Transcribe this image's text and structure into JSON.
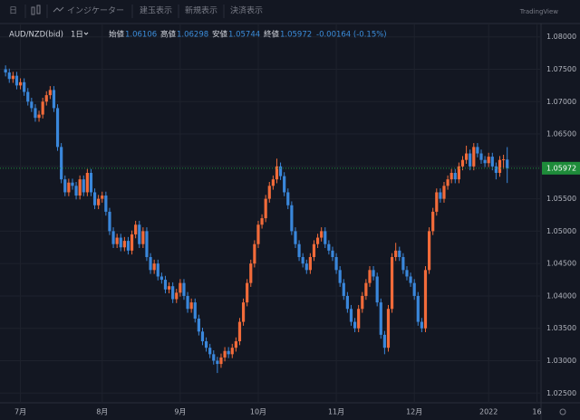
{
  "toolbar": {
    "interval": "日",
    "indicators": "インジケーター",
    "buttons": [
      "建玉表示",
      "新規表示",
      "決済表示"
    ],
    "brand": "TradingView"
  },
  "chart_data": {
    "type": "candlestick",
    "symbol": "AUD/NZD(bid)",
    "interval": "1日",
    "header_labels": [
      "始値",
      "高値",
      "安値",
      "終値"
    ],
    "change": "-0.00164 (-0.15%)",
    "up_color": "#f26b3a",
    "down_color": "#3a87db",
    "last_price_color": "#1e8c3a",
    "grid": true,
    "ylim": [
      1.0235,
      1.0815
    ],
    "xlim": [
      -1.5,
      144.1
    ],
    "yticks": [
      {
        "value": 1.08,
        "label": "1.08000"
      },
      {
        "value": 1.075,
        "label": "1.07500"
      },
      {
        "value": 1.07,
        "label": "1.07000"
      },
      {
        "value": 1.065,
        "label": "1.06500"
      },
      {
        "value": 1.06,
        "label": "1.06000"
      },
      {
        "value": 1.055,
        "label": "1.05500"
      },
      {
        "value": 1.05,
        "label": "1.05000"
      },
      {
        "value": 1.045,
        "label": "1.04500"
      },
      {
        "value": 1.04,
        "label": "1.04000"
      },
      {
        "value": 1.035,
        "label": "1.03500"
      },
      {
        "value": 1.03,
        "label": "1.03000"
      },
      {
        "value": 1.025,
        "label": "1.02500"
      }
    ],
    "xticks": [
      {
        "value": 4,
        "label": "7月"
      },
      {
        "value": 26,
        "label": "8月"
      },
      {
        "value": 47,
        "label": "9月"
      },
      {
        "value": 68,
        "label": "10月"
      },
      {
        "value": 89,
        "label": "11月"
      },
      {
        "value": 110,
        "label": "12月"
      },
      {
        "value": 130,
        "label": "2022"
      },
      {
        "value": 143,
        "label": "16"
      }
    ],
    "candles": [
      [
        1.075,
        1.0756,
        1.0739,
        1.0745
      ],
      [
        1.0745,
        1.0751,
        1.0729,
        1.0735
      ],
      [
        1.0735,
        1.0746,
        1.0729,
        1.074
      ],
      [
        1.074,
        1.0746,
        1.0719,
        1.0725
      ],
      [
        1.0725,
        1.0736,
        1.0719,
        1.073
      ],
      [
        1.073,
        1.0736,
        1.0709,
        1.0715
      ],
      [
        1.0715,
        1.0721,
        1.0694,
        1.07
      ],
      [
        1.07,
        1.0706,
        1.0684,
        1.069
      ],
      [
        1.069,
        1.0696,
        1.0669,
        1.0675
      ],
      [
        1.0675,
        1.0686,
        1.0669,
        1.068
      ],
      [
        1.068,
        1.0706,
        1.0674,
        1.07
      ],
      [
        1.07,
        1.0716,
        1.0694,
        1.071
      ],
      [
        1.071,
        1.0724,
        1.0704,
        1.0718
      ],
      [
        1.0718,
        1.0724,
        1.0684,
        1.069
      ],
      [
        1.069,
        1.0696,
        1.0624,
        1.063
      ],
      [
        1.063,
        1.0636,
        1.0574,
        1.058
      ],
      [
        1.058,
        1.0586,
        1.0554,
        1.056
      ],
      [
        1.056,
        1.0581,
        1.0554,
        1.0575
      ],
      [
        1.0575,
        1.0581,
        1.0564,
        1.057
      ],
      [
        1.057,
        1.0576,
        1.0549,
        1.0555
      ],
      [
        1.0555,
        1.0586,
        1.0549,
        1.058
      ],
      [
        1.058,
        1.0586,
        1.0554,
        1.056
      ],
      [
        1.056,
        1.0596,
        1.0554,
        1.059
      ],
      [
        1.059,
        1.0596,
        1.0554,
        1.056
      ],
      [
        1.056,
        1.0566,
        1.0534,
        1.054
      ],
      [
        1.054,
        1.0556,
        1.0534,
        1.055
      ],
      [
        1.055,
        1.0561,
        1.0544,
        1.0555
      ],
      [
        1.0555,
        1.0561,
        1.0524,
        1.053
      ],
      [
        1.053,
        1.0536,
        1.0494,
        1.05
      ],
      [
        1.05,
        1.0506,
        1.0474,
        1.048
      ],
      [
        1.048,
        1.0496,
        1.0474,
        1.049
      ],
      [
        1.049,
        1.0496,
        1.0469,
        1.0475
      ],
      [
        1.0475,
        1.0491,
        1.0469,
        1.0485
      ],
      [
        1.0485,
        1.0491,
        1.0464,
        1.047
      ],
      [
        1.047,
        1.0501,
        1.0464,
        1.0495
      ],
      [
        1.0495,
        1.0516,
        1.0489,
        1.051
      ],
      [
        1.051,
        1.0516,
        1.0474,
        1.048
      ],
      [
        1.048,
        1.0506,
        1.0474,
        1.05
      ],
      [
        1.05,
        1.0506,
        1.0454,
        1.046
      ],
      [
        1.046,
        1.0466,
        1.0434,
        1.044
      ],
      [
        1.044,
        1.0456,
        1.0434,
        1.045
      ],
      [
        1.045,
        1.0456,
        1.0424,
        1.043
      ],
      [
        1.043,
        1.0436,
        1.0419,
        1.0425
      ],
      [
        1.0425,
        1.0431,
        1.0404,
        1.041
      ],
      [
        1.041,
        1.0421,
        1.0404,
        1.0415
      ],
      [
        1.0415,
        1.0421,
        1.0389,
        1.0395
      ],
      [
        1.0395,
        1.0411,
        1.0389,
        1.0405
      ],
      [
        1.0405,
        1.0426,
        1.0399,
        1.042
      ],
      [
        1.042,
        1.0426,
        1.0394,
        1.04
      ],
      [
        1.04,
        1.0406,
        1.0374,
        1.038
      ],
      [
        1.038,
        1.0396,
        1.0374,
        1.039
      ],
      [
        1.039,
        1.0396,
        1.0359,
        1.0365
      ],
      [
        1.0365,
        1.0371,
        1.0339,
        1.0345
      ],
      [
        1.0345,
        1.0351,
        1.0324,
        1.033
      ],
      [
        1.033,
        1.0336,
        1.0314,
        1.032
      ],
      [
        1.032,
        1.0326,
        1.0304,
        1.031
      ],
      [
        1.031,
        1.0316,
        1.0294,
        1.03
      ],
      [
        1.03,
        1.0306,
        1.0281,
        1.0295
      ],
      [
        1.0295,
        1.0311,
        1.0289,
        1.0305
      ],
      [
        1.0305,
        1.0321,
        1.0299,
        1.0315
      ],
      [
        1.0315,
        1.0321,
        1.0304,
        1.031
      ],
      [
        1.031,
        1.0326,
        1.0304,
        1.032
      ],
      [
        1.032,
        1.0336,
        1.0314,
        1.033
      ],
      [
        1.033,
        1.0366,
        1.0324,
        1.036
      ],
      [
        1.036,
        1.0396,
        1.0354,
        1.039
      ],
      [
        1.039,
        1.0426,
        1.0384,
        1.042
      ],
      [
        1.042,
        1.0456,
        1.0414,
        1.045
      ],
      [
        1.045,
        1.0486,
        1.0444,
        1.048
      ],
      [
        1.048,
        1.0516,
        1.0474,
        1.051
      ],
      [
        1.051,
        1.0526,
        1.0504,
        1.052
      ],
      [
        1.052,
        1.0556,
        1.0514,
        1.055
      ],
      [
        1.055,
        1.0576,
        1.0544,
        1.057
      ],
      [
        1.057,
        1.0586,
        1.0564,
        1.058
      ],
      [
        1.058,
        1.0612,
        1.0574,
        1.06
      ],
      [
        1.06,
        1.0606,
        1.0579,
        1.0585
      ],
      [
        1.0585,
        1.0591,
        1.0554,
        1.056
      ],
      [
        1.056,
        1.0566,
        1.0534,
        1.054
      ],
      [
        1.054,
        1.0546,
        1.0494,
        1.05
      ],
      [
        1.05,
        1.0506,
        1.0474,
        1.048
      ],
      [
        1.048,
        1.0486,
        1.0454,
        1.046
      ],
      [
        1.046,
        1.0466,
        1.0444,
        1.045
      ],
      [
        1.045,
        1.0456,
        1.0434,
        1.044
      ],
      [
        1.044,
        1.0466,
        1.0434,
        1.046
      ],
      [
        1.046,
        1.0486,
        1.0454,
        1.048
      ],
      [
        1.048,
        1.0496,
        1.0474,
        1.049
      ],
      [
        1.049,
        1.0506,
        1.0484,
        1.05
      ],
      [
        1.05,
        1.0506,
        1.0474,
        1.048
      ],
      [
        1.048,
        1.0486,
        1.0464,
        1.047
      ],
      [
        1.047,
        1.0476,
        1.0454,
        1.046
      ],
      [
        1.046,
        1.0466,
        1.0434,
        1.044
      ],
      [
        1.044,
        1.0446,
        1.0414,
        1.042
      ],
      [
        1.042,
        1.0426,
        1.0394,
        1.04
      ],
      [
        1.04,
        1.0406,
        1.0374,
        1.038
      ],
      [
        1.038,
        1.0386,
        1.0354,
        1.036
      ],
      [
        1.036,
        1.0366,
        1.0344,
        1.035
      ],
      [
        1.035,
        1.0386,
        1.0344,
        1.038
      ],
      [
        1.038,
        1.0406,
        1.0374,
        1.04
      ],
      [
        1.04,
        1.0426,
        1.0394,
        1.042
      ],
      [
        1.042,
        1.0446,
        1.0414,
        1.044
      ],
      [
        1.044,
        1.0446,
        1.0424,
        1.043
      ],
      [
        1.043,
        1.0436,
        1.0384,
        1.039
      ],
      [
        1.039,
        1.0396,
        1.0334,
        1.034
      ],
      [
        1.034,
        1.0346,
        1.031,
        1.032
      ],
      [
        1.032,
        1.0386,
        1.0314,
        1.038
      ],
      [
        1.038,
        1.0466,
        1.0374,
        1.046
      ],
      [
        1.046,
        1.0482,
        1.0454,
        1.047
      ],
      [
        1.047,
        1.0476,
        1.0454,
        1.046
      ],
      [
        1.046,
        1.0466,
        1.0434,
        1.044
      ],
      [
        1.044,
        1.0446,
        1.0424,
        1.043
      ],
      [
        1.043,
        1.0436,
        1.0414,
        1.042
      ],
      [
        1.042,
        1.0426,
        1.0394,
        1.04
      ],
      [
        1.04,
        1.0406,
        1.0354,
        1.036
      ],
      [
        1.036,
        1.0366,
        1.0344,
        1.035
      ],
      [
        1.035,
        1.0446,
        1.0344,
        1.044
      ],
      [
        1.044,
        1.0506,
        1.0434,
        1.05
      ],
      [
        1.05,
        1.0536,
        1.0494,
        1.053
      ],
      [
        1.053,
        1.0566,
        1.0524,
        1.056
      ],
      [
        1.056,
        1.0566,
        1.0544,
        1.055
      ],
      [
        1.055,
        1.0576,
        1.0544,
        1.057
      ],
      [
        1.057,
        1.0586,
        1.0564,
        1.058
      ],
      [
        1.058,
        1.0596,
        1.0574,
        1.059
      ],
      [
        1.059,
        1.0596,
        1.0574,
        1.058
      ],
      [
        1.058,
        1.0606,
        1.0574,
        1.06
      ],
      [
        1.06,
        1.0616,
        1.0594,
        1.061
      ],
      [
        1.061,
        1.0632,
        1.0604,
        1.062
      ],
      [
        1.062,
        1.0626,
        1.0594,
        1.06
      ],
      [
        1.06,
        1.0636,
        1.0594,
        1.063
      ],
      [
        1.063,
        1.0636,
        1.0614,
        1.062
      ],
      [
        1.062,
        1.0626,
        1.0604,
        1.061
      ],
      [
        1.061,
        1.0616,
        1.0599,
        1.0605
      ],
      [
        1.0605,
        1.0621,
        1.0599,
        1.0615
      ],
      [
        1.0615,
        1.0621,
        1.0594,
        1.06
      ],
      [
        1.06,
        1.0606,
        1.058,
        1.059
      ],
      [
        1.059,
        1.0616,
        1.0584,
        1.061
      ],
      [
        1.061,
        1.0618,
        1.0596,
        1.0611
      ],
      [
        1.06106,
        1.06298,
        1.05744,
        1.05972
      ]
    ]
  }
}
